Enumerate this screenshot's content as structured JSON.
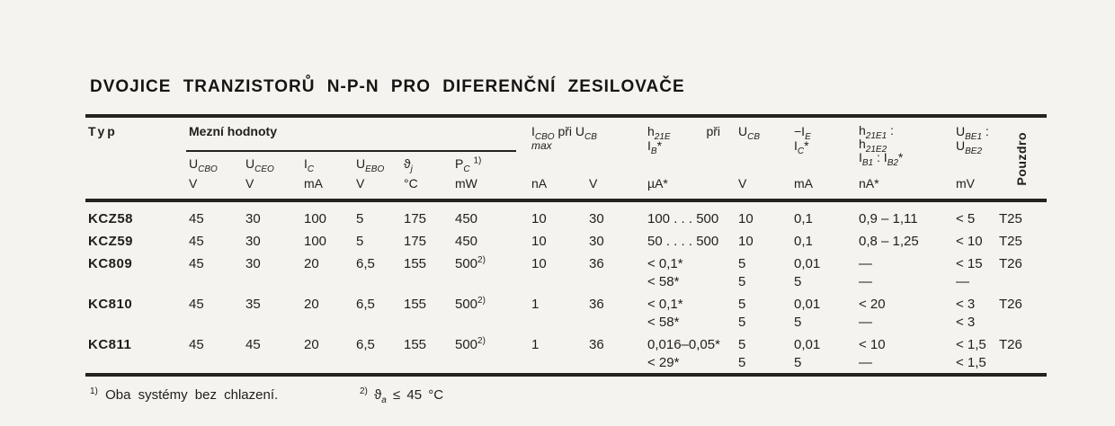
{
  "title": "DVOJICE TRANZISTORŮ N-P-N PRO DIFERENČNÍ ZESILOVAČE",
  "table": {
    "header": {
      "typ": "Typ",
      "mezni_hodnoty": "Mezní hodnoty",
      "limits": [
        {
          "sym": "U_{CBO}",
          "unit": "V"
        },
        {
          "sym": "U_{CEO}",
          "unit": "V"
        },
        {
          "sym": "I_{C}",
          "unit": "mA"
        },
        {
          "sym": "U_{EBO}",
          "unit": "V"
        },
        {
          "sym": "ϑ_{j}",
          "unit": "°C"
        },
        {
          "sym": "P_{C} ^{1)}",
          "unit": "mW"
        }
      ],
      "icbo": {
        "label": "I_{CBO} při U_{CB}",
        "cond": "max",
        "unit_na": "nA",
        "unit_v": "V"
      },
      "h21e": {
        "label": "h_{21E}\nI_{B}*",
        "pri": "při",
        "unit": "µA*"
      },
      "ucb": {
        "label": "U_{CB}",
        "unit": "V"
      },
      "ie": {
        "label": "−I_{E}\nI_{C}*",
        "unit": "mA"
      },
      "h_ratio": {
        "label": "h_{21E1} :\nh_{21E2}\nI_{B1} : I_{B2}*",
        "unit": "nA*"
      },
      "ube": {
        "label": "U_{BE1} :\nU_{BE2}",
        "unit": "mV"
      },
      "pouzdro": "Pouzdro"
    },
    "rows": [
      {
        "typ": "KCZ58",
        "ucbo": "45",
        "uceo": "30",
        "ic": "100",
        "uebo": "5",
        "theta": "175",
        "pc": "450",
        "icbo": "10",
        "ucb1": "30",
        "h21e": "100 . . . 500",
        "ucb2": "10",
        "ie": "0,1",
        "h_ratio": "0,9 – 1,11",
        "ube": "< 5",
        "pouzdro": "T25"
      },
      {
        "typ": "KCZ59",
        "ucbo": "45",
        "uceo": "30",
        "ic": "100",
        "uebo": "5",
        "theta": "175",
        "pc": "450",
        "icbo": "10",
        "ucb1": "30",
        "h21e": "50 . . . . 500",
        "ucb2": "10",
        "ie": "0,1",
        "h_ratio": "0,8 – 1,25",
        "ube": "< 10",
        "pouzdro": "T25"
      },
      {
        "typ": "KC809",
        "ucbo": "45",
        "uceo": "30",
        "ic": "20",
        "uebo": "6,5",
        "theta": "155",
        "pc": "500^{2)}",
        "icbo": "10",
        "ucb1": "36",
        "h21e": "< 0,1*\n< 58*",
        "ucb2": "5\n5",
        "ie": "0,01\n5",
        "h_ratio": "—\n—",
        "ube": "< 15\n—",
        "pouzdro": "T26"
      },
      {
        "typ": "KC810",
        "ucbo": "45",
        "uceo": "35",
        "ic": "20",
        "uebo": "6,5",
        "theta": "155",
        "pc": "500^{2)}",
        "icbo": "1",
        "ucb1": "36",
        "h21e": "< 0,1*\n< 58*",
        "ucb2": "5\n5",
        "ie": "0,01\n5",
        "h_ratio": "< 20\n—",
        "ube": "< 3\n< 3",
        "pouzdro": "T26"
      },
      {
        "typ": "KC811",
        "ucbo": "45",
        "uceo": "45",
        "ic": "20",
        "uebo": "6,5",
        "theta": "155",
        "pc": "500^{2)}",
        "icbo": "1",
        "ucb1": "36",
        "h21e": "0,016–0,05*\n< 29*",
        "ucb2": "5\n5",
        "ie": "0,01\n5",
        "h_ratio": "< 10\n—",
        "ube": "< 1,5\n< 1,5",
        "pouzdro": "T26"
      }
    ]
  },
  "footnotes": {
    "f1": "^{1)} Oba systémy bez chlazení.",
    "f2": "^{2)} ϑ_{a} ≤ 45 °C"
  }
}
